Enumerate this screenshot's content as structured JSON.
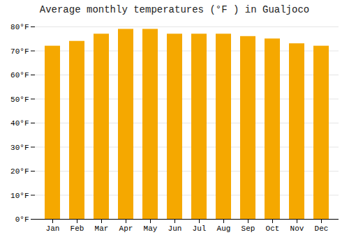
{
  "chart_data": {
    "type": "bar",
    "title": "Average monthly temperatures (°F ) in Gualjoco",
    "categories": [
      "Jan",
      "Feb",
      "Mar",
      "Apr",
      "May",
      "Jun",
      "Jul",
      "Aug",
      "Sep",
      "Oct",
      "Nov",
      "Dec"
    ],
    "values": [
      72,
      74,
      77,
      79,
      79,
      77,
      77,
      77,
      76,
      75,
      73,
      72
    ],
    "color": "#F5A800",
    "ylim": [
      0,
      80
    ],
    "yticks": [
      {
        "value": 0,
        "label": "0°F"
      },
      {
        "value": 10,
        "label": "10°F"
      },
      {
        "value": 20,
        "label": "20°F"
      },
      {
        "value": 30,
        "label": "30°F"
      },
      {
        "value": 40,
        "label": "40°F"
      },
      {
        "value": 50,
        "label": "50°F"
      },
      {
        "value": 60,
        "label": "60°F"
      },
      {
        "value": 70,
        "label": "70°F"
      },
      {
        "value": 80,
        "label": "80°F"
      }
    ],
    "grid": true
  }
}
